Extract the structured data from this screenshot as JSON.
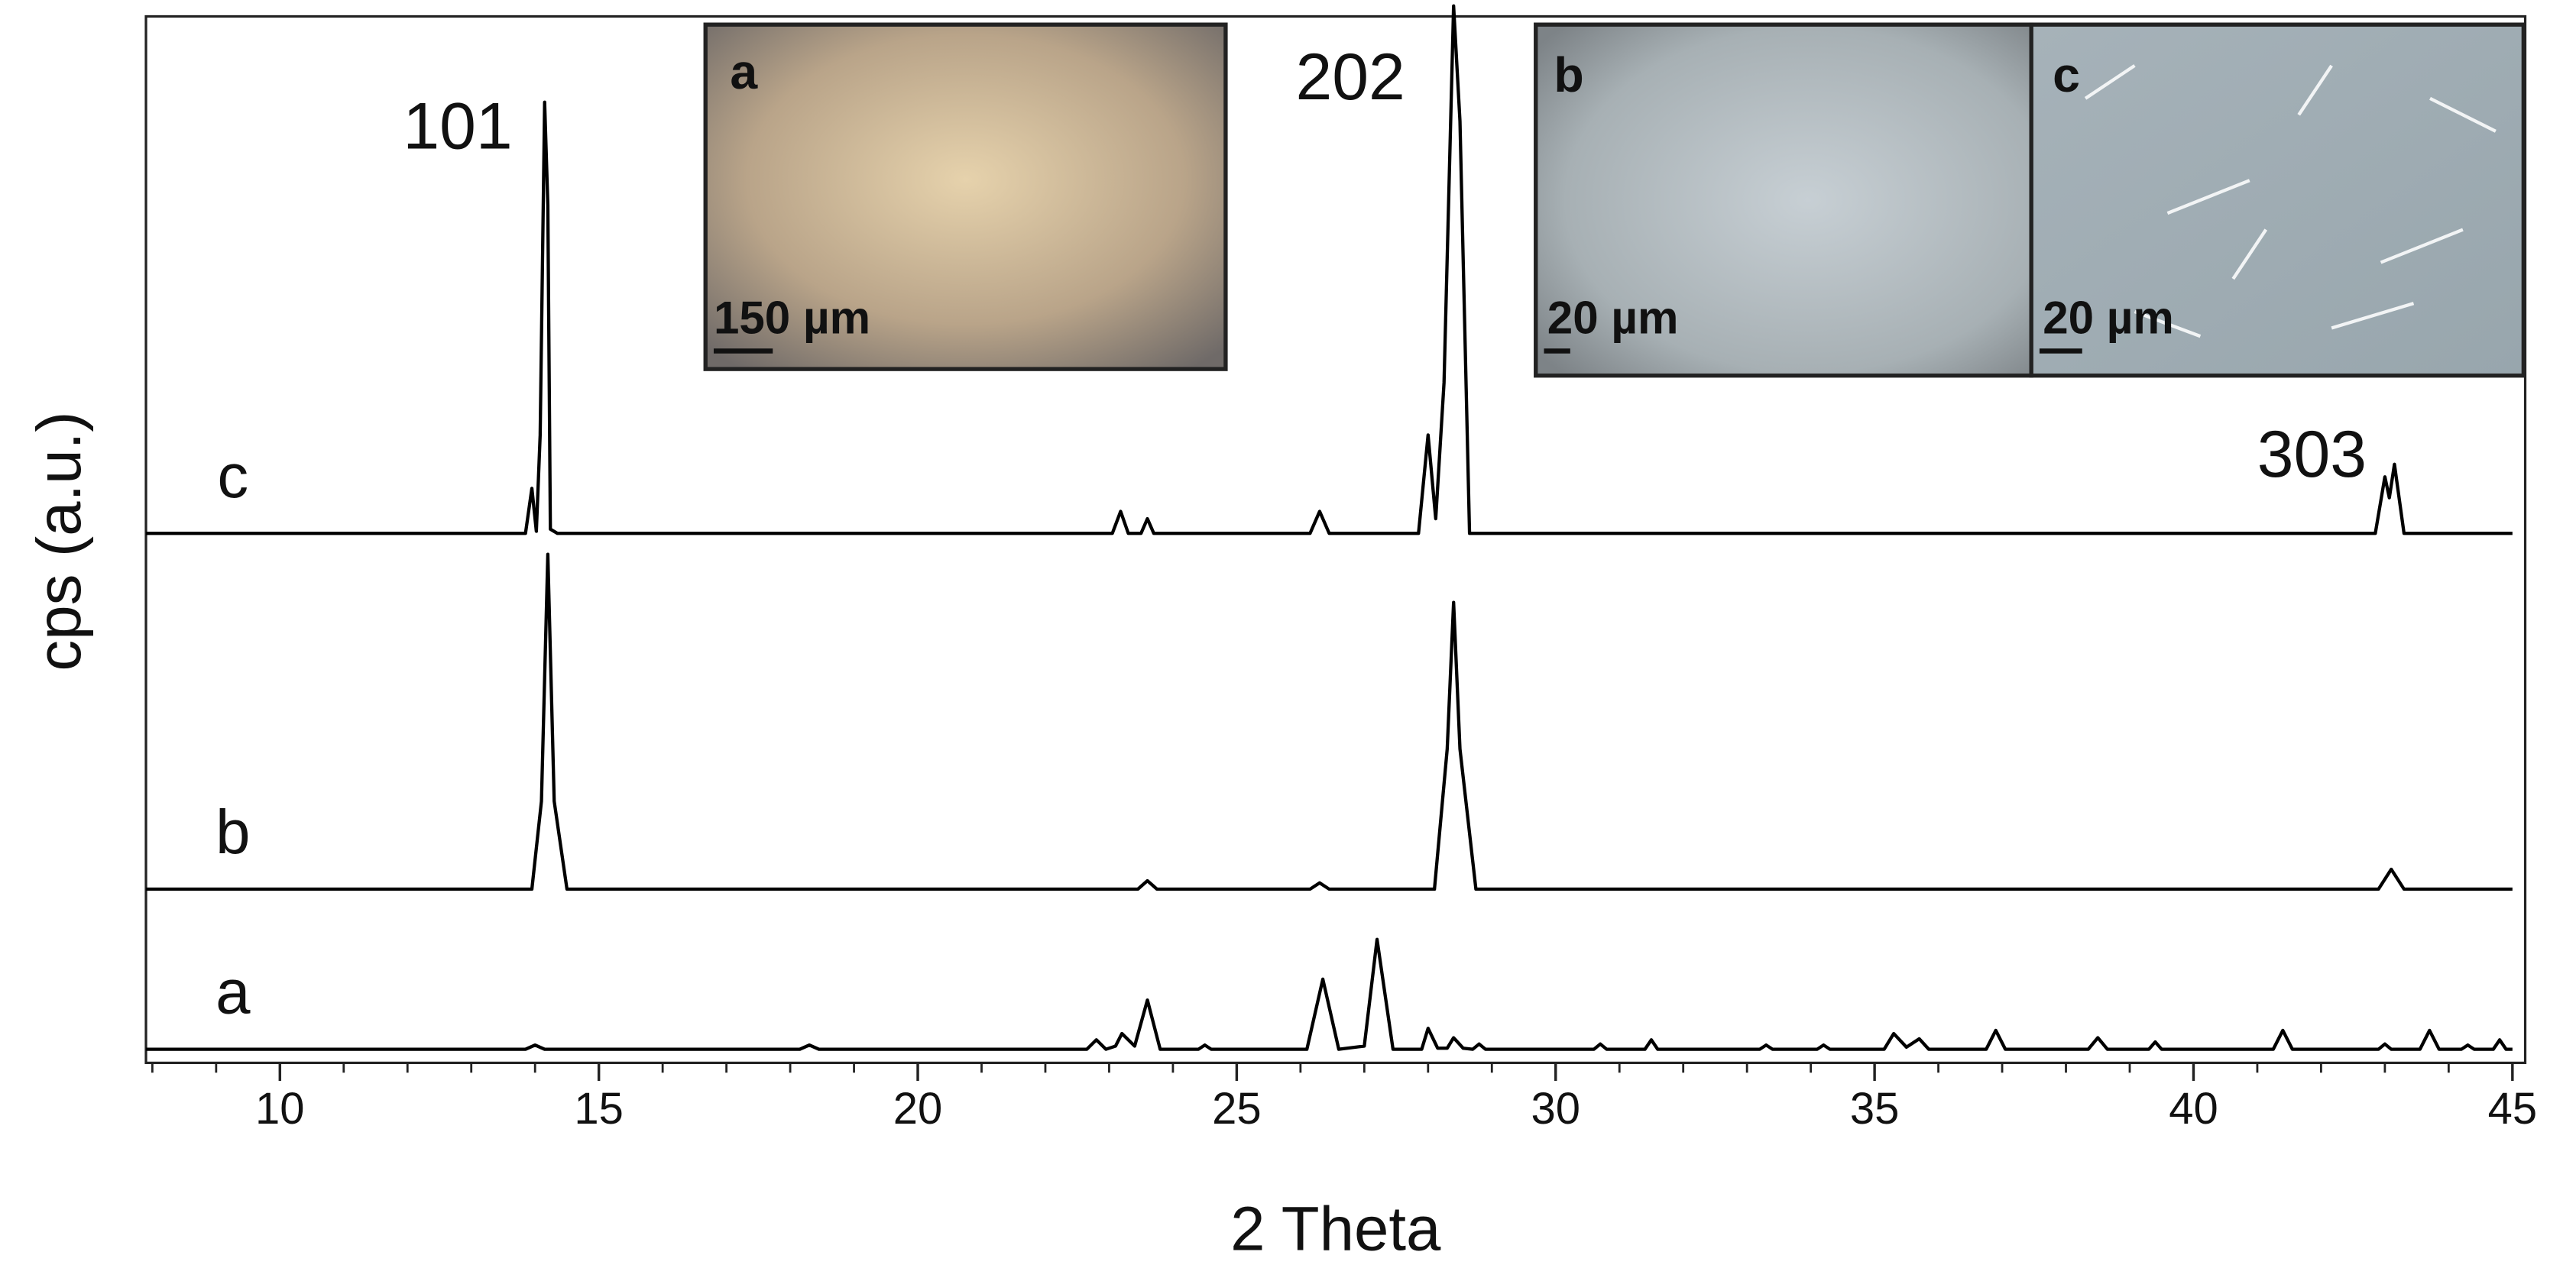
{
  "chart_data": {
    "type": "line",
    "xlabel": "2 Theta",
    "ylabel": "cps (a.u.)",
    "xlim": [
      7.9,
      45.2
    ],
    "ylim": [
      0,
      100
    ],
    "xticks": [
      10,
      15,
      20,
      25,
      30,
      35,
      40,
      45
    ],
    "xminorticks": [
      8,
      9,
      10,
      11,
      12,
      13,
      14,
      15,
      16,
      17,
      18,
      19,
      20,
      21,
      22,
      23,
      24,
      25,
      26,
      27,
      28,
      29,
      30,
      31,
      32,
      33,
      34,
      35,
      36,
      37,
      38,
      39,
      40,
      41,
      42,
      43,
      44,
      45
    ],
    "annotations": [
      "101",
      "202",
      "303"
    ],
    "series": [
      {
        "name": "a",
        "color": "#000000",
        "x": [
          7.9,
          13.85,
          14.0,
          14.15,
          18.15,
          18.3,
          18.45,
          22.65,
          22.8,
          22.95,
          23.1,
          23.2,
          23.4,
          23.6,
          23.8,
          24.4,
          24.5,
          24.6,
          26.1,
          26.35,
          26.6,
          27.0,
          27.2,
          27.45,
          27.9,
          28.0,
          28.15,
          28.3,
          28.4,
          28.55,
          28.7,
          28.8,
          28.9,
          30.6,
          30.7,
          30.8,
          31.4,
          31.5,
          31.6,
          33.2,
          33.3,
          33.4,
          34.1,
          34.2,
          34.3,
          35.15,
          35.3,
          35.5,
          35.7,
          35.85,
          36.75,
          36.9,
          37.05,
          38.35,
          38.5,
          38.65,
          39.3,
          39.4,
          39.5,
          41.25,
          41.4,
          41.55,
          42.9,
          43.0,
          43.1,
          43.55,
          43.7,
          43.85,
          44.2,
          44.3,
          44.4,
          44.7,
          44.8,
          44.9,
          45.0
        ],
        "values": [
          1.3,
          1.3,
          1.7,
          1.3,
          1.3,
          1.7,
          1.3,
          1.3,
          2.2,
          1.3,
          1.6,
          2.8,
          1.6,
          6,
          1.3,
          1.3,
          1.7,
          1.3,
          1.3,
          8,
          1.3,
          1.6,
          11.8,
          1.3,
          1.3,
          3.3,
          1.4,
          1.4,
          2.4,
          1.4,
          1.3,
          1.8,
          1.3,
          1.3,
          1.8,
          1.3,
          1.3,
          2.2,
          1.3,
          1.3,
          1.7,
          1.3,
          1.3,
          1.7,
          1.3,
          1.3,
          2.8,
          1.5,
          2.3,
          1.3,
          1.3,
          3.1,
          1.3,
          1.3,
          2.4,
          1.3,
          1.3,
          2.0,
          1.3,
          1.3,
          3.1,
          1.3,
          1.3,
          1.8,
          1.3,
          1.3,
          3.1,
          1.3,
          1.3,
          1.7,
          1.3,
          1.3,
          2.2,
          1.3,
          1.3
        ]
      },
      {
        "name": "b",
        "color": "#000000",
        "x": [
          7.9,
          13.95,
          14.1,
          14.2,
          14.3,
          14.5,
          23.45,
          23.6,
          23.75,
          26.15,
          26.3,
          26.45,
          28.1,
          28.3,
          28.4,
          28.5,
          28.75,
          42.9,
          43.1,
          43.3,
          45.0
        ],
        "values": [
          16.6,
          16.6,
          25,
          48.6,
          25,
          16.6,
          16.6,
          17.4,
          16.6,
          16.6,
          17.2,
          16.6,
          16.6,
          30,
          44,
          30,
          16.6,
          16.6,
          18.5,
          16.6,
          16.6
        ]
      },
      {
        "name": "c",
        "color": "#000000",
        "x": [
          7.9,
          13.85,
          13.95,
          14.02,
          14.08,
          14.15,
          14.2,
          14.24,
          14.35,
          23.05,
          23.18,
          23.3,
          23.5,
          23.6,
          23.7,
          26.15,
          26.3,
          26.45,
          27.85,
          28.0,
          28.12,
          28.25,
          28.4,
          28.5,
          28.65,
          42.85,
          43.0,
          43.07,
          43.15,
          43.3,
          45.0
        ],
        "values": [
          50.6,
          50.6,
          54.9,
          50.8,
          60,
          91.8,
          82,
          51,
          50.6,
          50.6,
          52.7,
          50.6,
          50.6,
          52,
          50.6,
          50.6,
          52.7,
          50.6,
          50.6,
          60,
          52,
          65,
          101,
          90,
          50.6,
          50.6,
          56,
          54,
          57.2,
          50.6,
          50.6
        ]
      }
    ],
    "insets": [
      {
        "label": "a",
        "scale": "150 µm"
      },
      {
        "label": "b",
        "scale": "20 µm"
      },
      {
        "label": "c",
        "scale": "20 µm"
      }
    ]
  }
}
